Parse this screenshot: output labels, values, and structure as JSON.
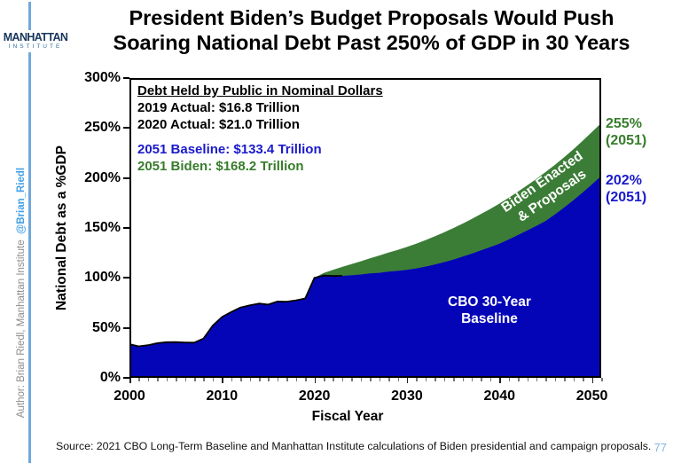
{
  "page": {
    "logo_line1": "MANHATTAN",
    "logo_line2": "INSTITUTE",
    "title_line1": "President Biden’s Budget Proposals Would Push",
    "title_line2": "Soaring National Debt Past 250% of GDP in 30 Years",
    "author_credit": "Author: Brian Riedl, Manhattan Institute",
    "author_handle": "@Brian_Riedl",
    "source_note": "Source: 2021 CBO Long-Term Baseline and Manhattan Institute calculations of Biden presidential and campaign proposals.",
    "page_number": "77"
  },
  "annotation": {
    "heading": "Debt Held by Public in Nominal Dollars",
    "actual_2019": "2019 Actual: $16.8 Trillion",
    "actual_2020": "2020 Actual: $21.0 Trillion",
    "baseline_2051": "2051 Baseline: $133.4 Trillion",
    "biden_2051": "2051 Biden: $168.2 Trillion"
  },
  "plot_labels": {
    "baseline_line1": "CBO 30-Year",
    "baseline_line2": "Baseline",
    "biden_line1": "Biden Enacted",
    "biden_line2": "& Proposals",
    "end_biden_pct": "255%",
    "end_biden_year": "(2051)",
    "end_baseline_pct": "202%",
    "end_baseline_year": "(2051)"
  },
  "colors": {
    "baseline_area": "#0505b8",
    "biden_area": "#3b7d36",
    "baseline_text": "#1a1acc",
    "biden_text": "#377d2b",
    "accent_rule": "#6fa8dc",
    "handle_blue": "#42a0e8",
    "logo_navy": "#17365d",
    "page_number_blue": "#85b5e2"
  },
  "chart_data": {
    "type": "area",
    "title": "President Biden’s Budget Proposals Would Push Soaring National Debt Past 250% of GDP in 30 Years",
    "xlabel": "Fiscal Year",
    "ylabel": "National Debt as a %GDP",
    "x_range": [
      2000,
      2051
    ],
    "ylim": [
      0,
      300
    ],
    "grid": false,
    "legend": "in-plot labels",
    "x_ticks": [
      2000,
      2010,
      2020,
      2030,
      2040,
      2050
    ],
    "y_ticks": [
      0,
      50,
      100,
      150,
      200,
      250,
      300
    ],
    "y_tick_suffix": "%",
    "years": [
      2000,
      2001,
      2002,
      2003,
      2004,
      2005,
      2006,
      2007,
      2008,
      2009,
      2010,
      2011,
      2012,
      2013,
      2014,
      2015,
      2016,
      2017,
      2018,
      2019,
      2020,
      2021,
      2022,
      2023,
      2024,
      2025,
      2026,
      2027,
      2028,
      2029,
      2030,
      2031,
      2032,
      2033,
      2034,
      2035,
      2036,
      2037,
      2038,
      2039,
      2040,
      2041,
      2042,
      2043,
      2044,
      2045,
      2046,
      2047,
      2048,
      2049,
      2050,
      2051
    ],
    "series": [
      {
        "name": "CBO 30-Year Baseline",
        "color": "#0505b8",
        "values": [
          33.7,
          31.5,
          32.7,
          34.7,
          35.7,
          35.8,
          35.4,
          35.2,
          39.3,
          52.3,
          60.9,
          65.9,
          70.4,
          72.6,
          74.4,
          73.3,
          76.4,
          76.2,
          77.6,
          79.4,
          100.1,
          102.3,
          101.9,
          102.1,
          102.6,
          103.4,
          104.5,
          105.1,
          106.2,
          107.0,
          108.0,
          109.5,
          111.3,
          113.4,
          115.7,
          118.2,
          121.2,
          124.3,
          127.5,
          130.8,
          134.3,
          138.5,
          142.9,
          147.4,
          152.1,
          157.0,
          163.5,
          170.5,
          177.8,
          185.5,
          193.6,
          202.0
        ]
      },
      {
        "name": "Biden Enacted & Proposals",
        "color": "#3b7d36",
        "values": [
          33.7,
          31.5,
          32.7,
          34.7,
          35.7,
          35.8,
          35.4,
          35.2,
          39.3,
          52.3,
          60.9,
          65.9,
          70.4,
          72.6,
          74.4,
          73.3,
          76.4,
          76.2,
          77.6,
          79.4,
          100.1,
          105.0,
          108.0,
          111.0,
          113.8,
          116.6,
          119.6,
          122.4,
          125.3,
          128.1,
          131.0,
          134.2,
          137.8,
          141.6,
          145.6,
          149.8,
          154.3,
          159.0,
          163.9,
          169.0,
          174.4,
          180.2,
          186.3,
          192.6,
          199.2,
          206.0,
          213.1,
          220.8,
          228.8,
          237.2,
          246.0,
          255.0
        ]
      }
    ],
    "endpoint_annotations": {
      "baseline_2051_pct": 202,
      "biden_2051_pct": 255,
      "baseline_2051_dollars_trillion": 133.4,
      "biden_2051_dollars_trillion": 168.2,
      "actual_2019_dollars_trillion": 16.8,
      "actual_2020_dollars_trillion": 21.0
    }
  }
}
